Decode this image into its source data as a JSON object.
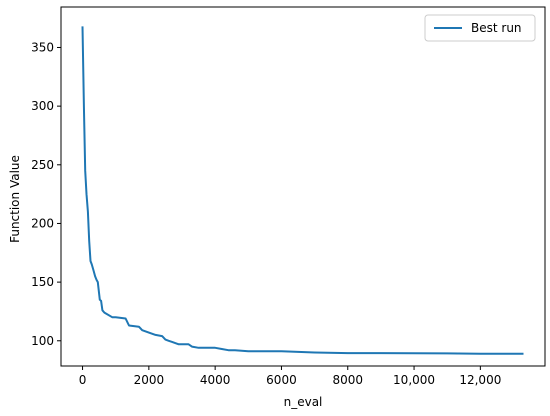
{
  "chart_data": {
    "type": "line",
    "xlabel": "n_eval",
    "ylabel": "Function Value",
    "xlim": [
      -650,
      13950
    ],
    "ylim": [
      78.5,
      384.5
    ],
    "x_ticks": [
      0,
      2000,
      4000,
      6000,
      8000,
      10000,
      12000
    ],
    "x_tick_labels": [
      "0",
      "2000",
      "4000",
      "6000",
      "8000",
      "10,000",
      "12,000"
    ],
    "y_ticks": [
      100,
      150,
      200,
      250,
      300,
      350
    ],
    "y_tick_labels": [
      "100",
      "150",
      "200",
      "250",
      "300",
      "350"
    ],
    "grid": false,
    "legend_position": "top-right",
    "colors": {
      "line": "#1f77b4",
      "axes": "#000000"
    },
    "series": [
      {
        "name": "Best run",
        "x": [
          0,
          40,
          80,
          120,
          160,
          200,
          240,
          280,
          330,
          380,
          420,
          460,
          520,
          560,
          600,
          660,
          900,
          1000,
          1300,
          1400,
          1700,
          1800,
          2000,
          2200,
          2400,
          2500,
          2600,
          2700,
          2900,
          3200,
          3300,
          3500,
          4000,
          4200,
          4400,
          4600,
          5000,
          5500,
          6000,
          7000,
          8000,
          9000,
          10000,
          11000,
          12000,
          13000,
          13300
        ],
        "y": [
          368,
          300,
          245,
          225,
          210,
          185,
          168,
          165,
          160,
          155,
          152,
          150,
          135,
          134,
          126,
          124,
          120,
          120,
          119,
          113,
          112,
          109,
          107,
          105,
          104,
          101,
          100,
          99,
          97,
          97,
          95,
          94,
          94,
          93,
          92,
          92,
          91,
          91,
          91,
          90,
          89.5,
          89.5,
          89.3,
          89.2,
          89,
          89,
          89
        ]
      }
    ]
  }
}
